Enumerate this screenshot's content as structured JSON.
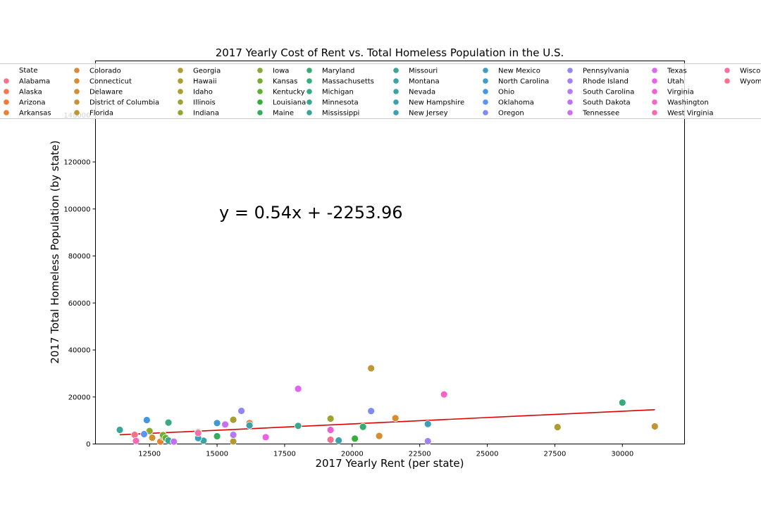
{
  "chart_data": {
    "type": "scatter",
    "title": "2017 Yearly Cost of Rent vs. Total Homeless Population in the U.S.",
    "xlabel": "2017 Yearly Rent (per state)",
    "ylabel": "2017 Total Homeless Population (by state)",
    "xlim": [
      10500,
      32300
    ],
    "ylim": [
      0,
      163000
    ],
    "xticks": [
      12500,
      15000,
      17500,
      20000,
      22500,
      25000,
      27500,
      30000
    ],
    "yticks": [
      0,
      20000,
      40000,
      60000,
      80000,
      100000,
      120000,
      140000
    ],
    "equation": "y = 0.54x + -2253.96",
    "regression": {
      "slope": 0.54,
      "intercept": -2253.96,
      "x_range": [
        11400,
        31200
      ],
      "color": "#e00000"
    },
    "grid": false,
    "legend_title": "State",
    "legend_location": "top",
    "series": [
      {
        "name": "Alabama",
        "color": "#f77189",
        "x": 11950,
        "y": 3900
      },
      {
        "name": "Alaska",
        "color": "#f7754f",
        "x": 14300,
        "y": 5150
      },
      {
        "name": "Arizona",
        "color": "#f37932",
        "x": 16200,
        "y": 8900
      },
      {
        "name": "Arkansas",
        "color": "#e7812f",
        "x": 12900,
        "y": 1000
      },
      {
        "name": "Colorado",
        "color": "#dc8932",
        "x": 21600,
        "y": 11000
      },
      {
        "name": "Connecticut",
        "color": "#d58d32",
        "x": 21000,
        "y": 3400
      },
      {
        "name": "Delaware",
        "color": "#ce9032",
        "x": 12600,
        "y": 2700
      },
      {
        "name": "District of Columbia",
        "color": "#c69432",
        "x": 31200,
        "y": 7500
      },
      {
        "name": "Florida",
        "color": "#bd9732",
        "x": 20700,
        "y": 32200
      },
      {
        "name": "Georgia",
        "color": "#b59a32",
        "x": 15600,
        "y": 1100
      },
      {
        "name": "Hawaii",
        "color": "#ad9d31",
        "x": 27600,
        "y": 7200
      },
      {
        "name": "Idaho",
        "color": "#a5a031",
        "x": 15600,
        "y": 10300
      },
      {
        "name": "Illinois",
        "color": "#9ca331",
        "x": 19200,
        "y": 10800
      },
      {
        "name": "Indiana",
        "color": "#93a531",
        "x": 12500,
        "y": 5500
      },
      {
        "name": "Iowa",
        "color": "#87a831",
        "x": 13000,
        "y": 3100
      },
      {
        "name": "Kansas",
        "color": "#77aa31",
        "x": 13000,
        "y": 3800
      },
      {
        "name": "Kentucky",
        "color": "#5fad32",
        "x": 13100,
        "y": 2500
      },
      {
        "name": "Louisiana",
        "color": "#33b039",
        "x": 20100,
        "y": 2300
      },
      {
        "name": "Maine",
        "color": "#34ae5d",
        "x": 15000,
        "y": 3300
      },
      {
        "name": "Maryland",
        "color": "#35ac70",
        "x": 20400,
        "y": 7300
      },
      {
        "name": "Massachusetts",
        "color": "#36ab7c",
        "x": 30000,
        "y": 17600
      },
      {
        "name": "Michigan",
        "color": "#36aa85",
        "x": 13200,
        "y": 9100
      },
      {
        "name": "Minnesota",
        "color": "#37a98d",
        "x": 18000,
        "y": 7700
      },
      {
        "name": "Mississippi",
        "color": "#37a794",
        "x": 13200,
        "y": 1500
      },
      {
        "name": "Missouri",
        "color": "#38a69b",
        "x": 11400,
        "y": 6000
      },
      {
        "name": "Montana",
        "color": "#38a5a1",
        "x": 14500,
        "y": 1400
      },
      {
        "name": "Nevada",
        "color": "#39a3a8",
        "x": 16200,
        "y": 7900
      },
      {
        "name": "New Hampshire",
        "color": "#3aa2af",
        "x": 19500,
        "y": 1500
      },
      {
        "name": "New Jersey",
        "color": "#3ba0b7",
        "x": 22800,
        "y": 8500
      },
      {
        "name": "New Mexico",
        "color": "#3c9ec0",
        "x": 14300,
        "y": 2500
      },
      {
        "name": "North Carolina",
        "color": "#3e9bcc",
        "x": 15000,
        "y": 8900
      },
      {
        "name": "Ohio",
        "color": "#4297e0",
        "x": 12400,
        "y": 10200
      },
      {
        "name": "Oklahoma",
        "color": "#5e92f3",
        "x": 12300,
        "y": 4200
      },
      {
        "name": "Oregon",
        "color": "#7d8cf4",
        "x": 20700,
        "y": 14000
      },
      {
        "name": "Pennsylvania",
        "color": "#9187f4",
        "x": 15900,
        "y": 14100
      },
      {
        "name": "Rhode Island",
        "color": "#a181f4",
        "x": 22800,
        "y": 1200
      },
      {
        "name": "South Carolina",
        "color": "#b27af4",
        "x": 15600,
        "y": 3900
      },
      {
        "name": "South Dakota",
        "color": "#c172f4",
        "x": 13400,
        "y": 1000
      },
      {
        "name": "Tennessee",
        "color": "#cf6cf4",
        "x": 15300,
        "y": 8300
      },
      {
        "name": "Texas",
        "color": "#e065f4",
        "x": 18000,
        "y": 23500
      },
      {
        "name": "Utah",
        "color": "#ec5fe7",
        "x": 16800,
        "y": 2900
      },
      {
        "name": "Virginia",
        "color": "#f25fd4",
        "x": 19200,
        "y": 6000
      },
      {
        "name": "Washington",
        "color": "#f565c4",
        "x": 23400,
        "y": 21100
      },
      {
        "name": "West Virginia",
        "color": "#f66ab5",
        "x": 12000,
        "y": 1300
      },
      {
        "name": "Wisconsin",
        "color": "#f66ea3",
        "x": 14300,
        "y": 4700
      },
      {
        "name": "Wyoming",
        "color": "#f67191",
        "x": 19200,
        "y": 1800
      }
    ]
  }
}
